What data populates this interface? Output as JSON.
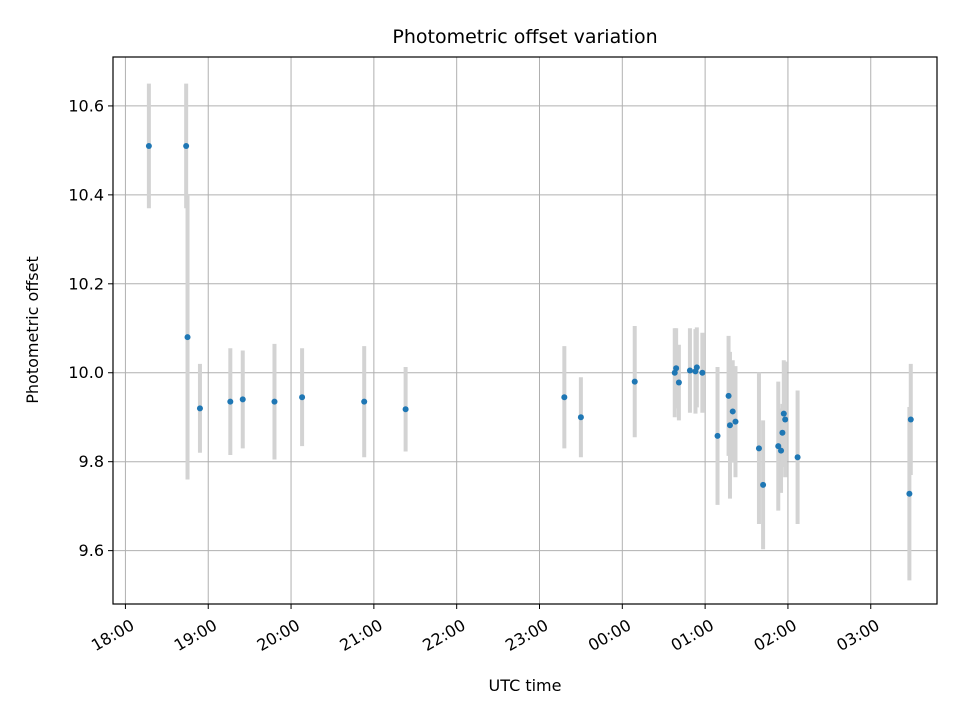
{
  "chart_data": {
    "type": "scatter",
    "title": "Photometric offset variation",
    "xlabel": "UTC time",
    "ylabel": "Photometric offset",
    "x_ticks": [
      "18:00",
      "19:00",
      "20:00",
      "21:00",
      "22:00",
      "23:00",
      "00:00",
      "01:00",
      "02:00",
      "03:00"
    ],
    "y_ticks": [
      "9.6",
      "9.8",
      "10.0",
      "10.2",
      "10.4",
      "10.6"
    ],
    "x_range_hours": [
      17.85,
      27.8
    ],
    "y_range": [
      9.48,
      10.71
    ],
    "grid": true,
    "legend": "none",
    "colors": {
      "point": "#1f77b4",
      "errorbar": "#d3d3d3",
      "grid": "#b0b0b0"
    },
    "points": [
      {
        "t": "18:17",
        "y": 10.51,
        "err": 0.14
      },
      {
        "t": "18:44",
        "y": 10.51,
        "err": 0.14
      },
      {
        "t": "18:45",
        "y": 10.08,
        "err": 0.32
      },
      {
        "t": "18:54",
        "y": 9.92,
        "err": 0.1
      },
      {
        "t": "19:16",
        "y": 9.935,
        "err": 0.12
      },
      {
        "t": "19:25",
        "y": 9.94,
        "err": 0.11
      },
      {
        "t": "19:48",
        "y": 9.935,
        "err": 0.13
      },
      {
        "t": "20:08",
        "y": 9.945,
        "err": 0.11
      },
      {
        "t": "20:53",
        "y": 9.935,
        "err": 0.125
      },
      {
        "t": "21:23",
        "y": 9.918,
        "err": 0.095
      },
      {
        "t": "23:18",
        "y": 9.945,
        "err": 0.115
      },
      {
        "t": "23:30",
        "y": 9.9,
        "err": 0.09
      },
      {
        "t": "00:09",
        "y": 9.98,
        "err": 0.125
      },
      {
        "t": "00:38",
        "y": 10.0,
        "err": 0.1
      },
      {
        "t": "00:39",
        "y": 10.01,
        "err": 0.09
      },
      {
        "t": "00:41",
        "y": 9.978,
        "err": 0.085
      },
      {
        "t": "00:49",
        "y": 10.005,
        "err": 0.095
      },
      {
        "t": "00:53",
        "y": 10.003,
        "err": 0.095
      },
      {
        "t": "00:54",
        "y": 10.012,
        "err": 0.09
      },
      {
        "t": "00:58",
        "y": 10.0,
        "err": 0.09
      },
      {
        "t": "01:09",
        "y": 9.858,
        "err": 0.155
      },
      {
        "t": "01:17",
        "y": 9.948,
        "err": 0.135
      },
      {
        "t": "01:18",
        "y": 9.882,
        "err": 0.165
      },
      {
        "t": "01:20",
        "y": 9.913,
        "err": 0.115
      },
      {
        "t": "01:22",
        "y": 9.89,
        "err": 0.125
      },
      {
        "t": "01:39",
        "y": 9.83,
        "err": 0.17
      },
      {
        "t": "01:42",
        "y": 9.748,
        "err": 0.145
      },
      {
        "t": "01:53",
        "y": 9.835,
        "err": 0.145
      },
      {
        "t": "01:55",
        "y": 9.825,
        "err": 0.095
      },
      {
        "t": "01:56",
        "y": 9.865,
        "err": 0.065
      },
      {
        "t": "01:57",
        "y": 9.908,
        "err": 0.12
      },
      {
        "t": "01:58",
        "y": 9.895,
        "err": 0.13
      },
      {
        "t": "02:07",
        "y": 9.81,
        "err": 0.15
      },
      {
        "t": "03:28",
        "y": 9.728,
        "err": 0.195
      },
      {
        "t": "03:29",
        "y": 9.895,
        "err": 0.125
      }
    ]
  }
}
